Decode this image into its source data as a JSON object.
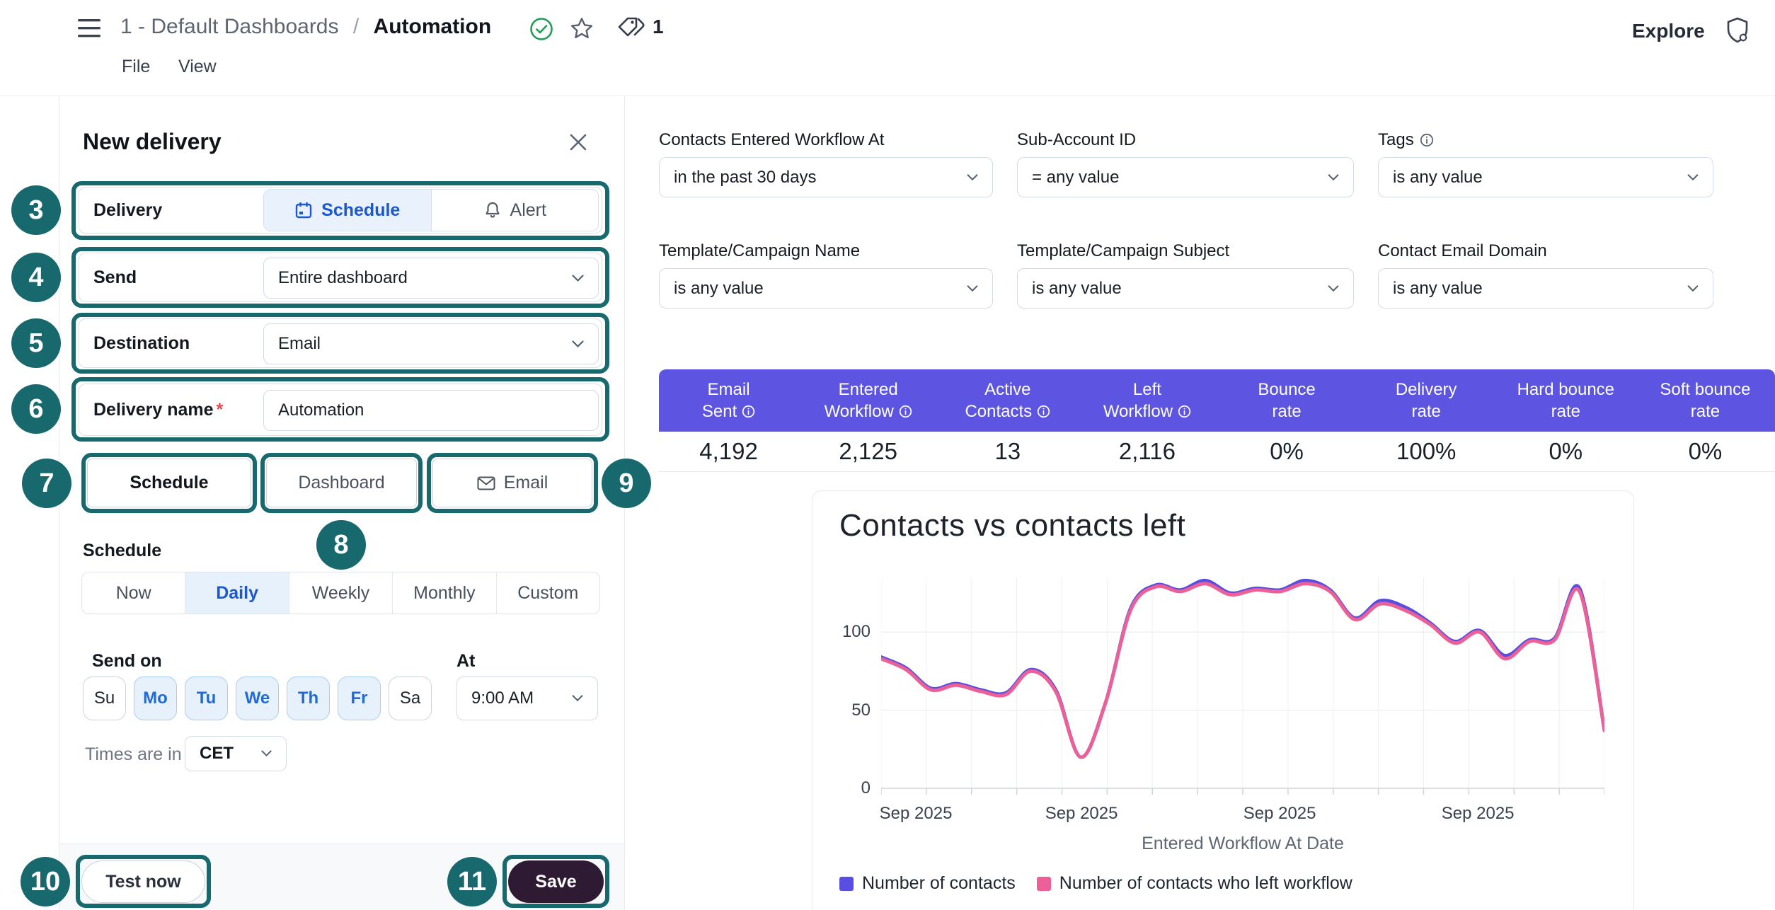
{
  "header": {
    "breadcrumb": {
      "parent": "1 - Default Dashboards",
      "separator": "/",
      "current": "Automation"
    },
    "tag_count": "1",
    "explore_label": "Explore",
    "menus": [
      "File",
      "View"
    ]
  },
  "panel": {
    "title": "New delivery",
    "delivery": {
      "label": "Delivery",
      "schedule_option": "Schedule",
      "alert_option": "Alert",
      "selected": "Schedule"
    },
    "send": {
      "label": "Send",
      "value": "Entire dashboard"
    },
    "destination": {
      "label": "Destination",
      "value": "Email"
    },
    "delivery_name": {
      "label": "Delivery name",
      "required_mark": "*",
      "value": "Automation"
    },
    "tabs": {
      "schedule": "Schedule",
      "dashboard": "Dashboard",
      "email": "Email"
    },
    "schedule_section": {
      "label": "Schedule",
      "options": [
        {
          "label": "Now",
          "selected": false
        },
        {
          "label": "Daily",
          "selected": true
        },
        {
          "label": "Weekly",
          "selected": false
        },
        {
          "label": "Monthly",
          "selected": false
        },
        {
          "label": "Custom",
          "selected": false
        }
      ]
    },
    "send_on": {
      "label": "Send on",
      "days": [
        {
          "label": "Su",
          "selected": false
        },
        {
          "label": "Mo",
          "selected": true
        },
        {
          "label": "Tu",
          "selected": true
        },
        {
          "label": "We",
          "selected": true
        },
        {
          "label": "Th",
          "selected": true
        },
        {
          "label": "Fr",
          "selected": true
        },
        {
          "label": "Sa",
          "selected": false
        }
      ]
    },
    "at": {
      "label": "At",
      "value": "9:00 AM"
    },
    "timezone": {
      "label": "Times are in",
      "value": "CET"
    },
    "footer": {
      "test_label": "Test now",
      "save_label": "Save"
    }
  },
  "annotations": {
    "color": "#17696d",
    "n3": "3",
    "n4": "4",
    "n5": "5",
    "n6": "6",
    "n7": "7",
    "n8": "8",
    "n9": "9",
    "n10": "10",
    "n11": "11"
  },
  "filters": [
    {
      "label": "Contacts Entered Workflow At",
      "value": "in the past 30 days",
      "info": false
    },
    {
      "label": "Sub-Account ID",
      "value": "= any value",
      "info": false
    },
    {
      "label": "Tags",
      "value": "is any value",
      "info": true
    },
    {
      "label": "Template/Campaign Name",
      "value": "is any value",
      "info": false
    },
    {
      "label": "Template/Campaign Subject",
      "value": "is any value",
      "info": false
    },
    {
      "label": "Contact Email Domain",
      "value": "is any value",
      "info": false
    }
  ],
  "metrics_table": {
    "header_bg": "#5d55e1",
    "columns": [
      {
        "title": "Email Sent",
        "lines": [
          "Email",
          "Sent"
        ],
        "info": true,
        "value": "4,192"
      },
      {
        "title": "Entered Workflow",
        "lines": [
          "Entered",
          "Workflow"
        ],
        "info": true,
        "value": "2,125"
      },
      {
        "title": "Active Contacts",
        "lines": [
          "Active",
          "Contacts"
        ],
        "info": true,
        "value": "13"
      },
      {
        "title": "Left Workflow",
        "lines": [
          "Left",
          "Workflow"
        ],
        "info": true,
        "value": "2,116"
      },
      {
        "title": "Bounce rate",
        "lines": [
          "Bounce",
          "rate"
        ],
        "info": false,
        "value": "0%"
      },
      {
        "title": "Delivery rate",
        "lines": [
          "Delivery",
          "rate"
        ],
        "info": false,
        "value": "100%"
      },
      {
        "title": "Hard bounce rate",
        "lines": [
          "Hard bounce",
          "rate"
        ],
        "info": false,
        "value": "0%"
      },
      {
        "title": "Soft bounce rate",
        "lines": [
          "Soft bounce",
          "rate"
        ],
        "info": false,
        "value": "0%"
      }
    ]
  },
  "chart_data": {
    "type": "line",
    "title": "Contacts vs contacts left",
    "xlabel": "Entered Workflow At Date",
    "x_tick_labels": [
      "Sep 2025",
      "Sep 2025",
      "Sep 2025",
      "Sep 2025"
    ],
    "yticks": [
      0,
      50,
      100
    ],
    "ylim": [
      0,
      135
    ],
    "grid": true,
    "legend_position": "bottom",
    "series": [
      {
        "name": "Number of contacts",
        "color": "#584ee0",
        "values": [
          84,
          77,
          64,
          67,
          63,
          61,
          76,
          63,
          20,
          55,
          115,
          130,
          127,
          133,
          125,
          128,
          127,
          133,
          127,
          109,
          120,
          116,
          106,
          94,
          101,
          85,
          95,
          96,
          128,
          37
        ]
      },
      {
        "name": "Number of contacts who left workflow",
        "color": "#ec6097",
        "values": [
          83,
          76,
          63,
          66,
          62,
          60,
          75,
          62,
          20,
          55,
          114,
          129,
          126,
          131,
          124,
          127,
          126,
          131,
          126,
          108,
          118,
          114,
          105,
          93,
          100,
          83,
          94,
          95,
          126,
          37
        ]
      }
    ]
  }
}
